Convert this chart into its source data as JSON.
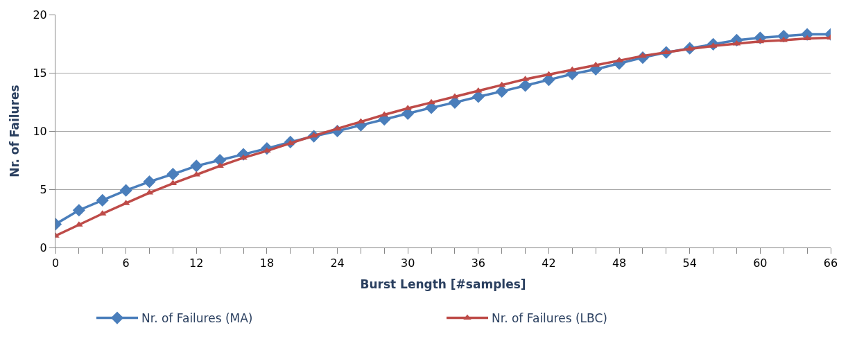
{
  "chart_data": {
    "type": "line",
    "xlabel": "Burst Length [#samples]",
    "ylabel": "Nr. of Failures",
    "x": [
      0,
      2,
      4,
      6,
      8,
      10,
      12,
      14,
      16,
      18,
      20,
      22,
      24,
      26,
      28,
      30,
      32,
      34,
      36,
      38,
      40,
      42,
      44,
      46,
      48,
      50,
      52,
      54,
      56,
      58,
      60,
      62,
      64,
      66
    ],
    "series": [
      {
        "name": "Nr. of Failures (MA)",
        "color": "#4a7ebb",
        "marker": "diamond",
        "values": [
          2.0,
          3.2,
          4.05,
          4.9,
          5.65,
          6.3,
          7.0,
          7.5,
          8.0,
          8.5,
          9.05,
          9.55,
          10.0,
          10.5,
          11.0,
          11.5,
          12.0,
          12.45,
          12.95,
          13.4,
          13.9,
          14.4,
          14.9,
          15.3,
          15.8,
          16.3,
          16.75,
          17.1,
          17.45,
          17.8,
          18.0,
          18.15,
          18.3,
          18.3
        ]
      },
      {
        "name": "Nr. of Failures (LBC)",
        "color": "#be4b48",
        "marker": "triangle",
        "values": [
          1.0,
          1.95,
          2.9,
          3.8,
          4.7,
          5.5,
          6.25,
          7.0,
          7.7,
          8.3,
          8.95,
          9.6,
          10.2,
          10.8,
          11.4,
          11.95,
          12.45,
          12.95,
          13.45,
          13.95,
          14.45,
          14.85,
          15.25,
          15.65,
          16.05,
          16.45,
          16.75,
          17.05,
          17.3,
          17.5,
          17.7,
          17.8,
          17.95,
          18.0
        ]
      }
    ],
    "xlim": [
      0,
      66
    ],
    "xticks": [
      0,
      {
        "value": 2,
        "label": null
      },
      {
        "value": 4,
        "label": null
      },
      6,
      {
        "value": 8,
        "label": null
      },
      {
        "value": 10,
        "label": null
      },
      12,
      {
        "value": 14,
        "label": null
      },
      {
        "value": 16,
        "label": null
      },
      18,
      {
        "value": 20,
        "label": null
      },
      {
        "value": 22,
        "label": null
      },
      24,
      {
        "value": 26,
        "label": null
      },
      {
        "value": 28,
        "label": null
      },
      30,
      {
        "value": 32,
        "label": null
      },
      {
        "value": 34,
        "label": null
      },
      36,
      {
        "value": 38,
        "label": null
      },
      {
        "value": 40,
        "label": null
      },
      42,
      {
        "value": 44,
        "label": null
      },
      {
        "value": 46,
        "label": null
      },
      48,
      {
        "value": 50,
        "label": null
      },
      {
        "value": 52,
        "label": null
      },
      54,
      {
        "value": 56,
        "label": null
      },
      {
        "value": 58,
        "label": null
      },
      60,
      {
        "value": 62,
        "label": null
      },
      {
        "value": 64,
        "label": null
      },
      66
    ],
    "ylim": [
      0,
      20
    ],
    "yticks": [
      0,
      5,
      10,
      15,
      20
    ],
    "grid": "y",
    "legend": "bottom",
    "line_style": "solid"
  }
}
